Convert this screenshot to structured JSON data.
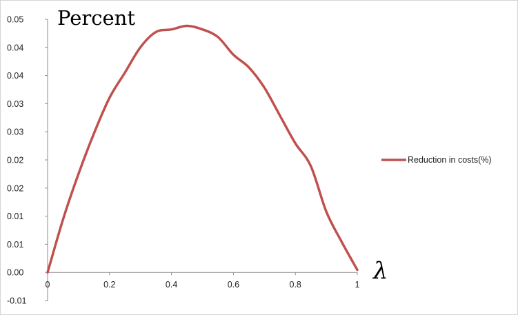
{
  "chart_data": {
    "type": "line",
    "ylabel": "Percent",
    "xlabel": "λ",
    "x_ticks": [
      "0",
      "0.2",
      "0.4",
      "0.6",
      "0.8",
      "1"
    ],
    "y_ticks": [
      "0.05",
      "0.04",
      "0.04",
      "0.03",
      "0.03",
      "0.02",
      "0.02",
      "0.01",
      "0.01",
      "0.00",
      "-0.01"
    ],
    "xlim": [
      0,
      1
    ],
    "ylim": [
      -0.005,
      0.05
    ],
    "grid": false,
    "legend_position": "right",
    "series": [
      {
        "name": "Reduction in costs(%)",
        "color": "#c0504d",
        "x": [
          0,
          0.05,
          0.1,
          0.15,
          0.2,
          0.25,
          0.3,
          0.35,
          0.4,
          0.45,
          0.5,
          0.55,
          0.6,
          0.65,
          0.7,
          0.75,
          0.8,
          0.85,
          0.9,
          0.95,
          1.0
        ],
        "y": [
          0.0,
          0.0105,
          0.0195,
          0.0275,
          0.0345,
          0.0395,
          0.0445,
          0.0475,
          0.048,
          0.0487,
          0.048,
          0.0465,
          0.043,
          0.0405,
          0.0365,
          0.031,
          0.0255,
          0.021,
          0.012,
          0.006,
          0.0005
        ]
      }
    ]
  }
}
